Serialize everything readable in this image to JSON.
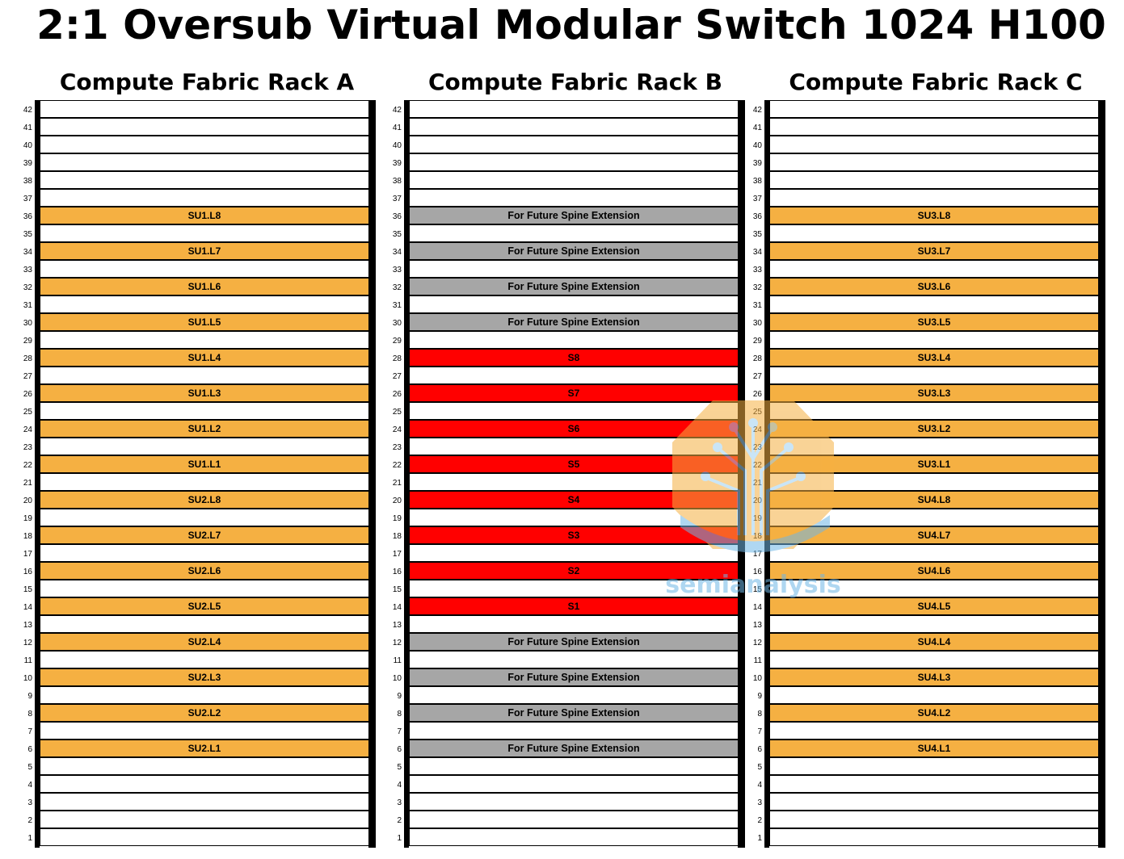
{
  "title": "2:1 Oversub Virtual Modular Switch 1024 H100",
  "colors": {
    "leaf": "#F5B042",
    "spine": "#FF0000",
    "future": "#A6A6A6",
    "empty": "#FFFFFF"
  },
  "watermark": {
    "text": "semianalysis",
    "icon": "tree-circuit-logo-icon"
  },
  "units": [
    "42",
    "41",
    "40",
    "39",
    "38",
    "37",
    "36",
    "35",
    "34",
    "33",
    "32",
    "31",
    "30",
    "29",
    "28",
    "27",
    "26",
    "25",
    "24",
    "23",
    "22",
    "21",
    "20",
    "19",
    "18",
    "17",
    "16",
    "15",
    "14",
    "13",
    "12",
    "11",
    "10",
    "9",
    "8",
    "7",
    "6",
    "5",
    "4",
    "3",
    "2",
    "1"
  ],
  "racks": [
    {
      "title": "Compute Fabric Rack A",
      "slots": [
        {
          "u": 36,
          "label": "SU1.L8",
          "kind": "leaf"
        },
        {
          "u": 34,
          "label": "SU1.L7",
          "kind": "leaf"
        },
        {
          "u": 32,
          "label": "SU1.L6",
          "kind": "leaf"
        },
        {
          "u": 30,
          "label": "SU1.L5",
          "kind": "leaf"
        },
        {
          "u": 28,
          "label": "SU1.L4",
          "kind": "leaf"
        },
        {
          "u": 26,
          "label": "SU1.L3",
          "kind": "leaf"
        },
        {
          "u": 24,
          "label": "SU1.L2",
          "kind": "leaf"
        },
        {
          "u": 22,
          "label": "SU1.L1",
          "kind": "leaf"
        },
        {
          "u": 20,
          "label": "SU2.L8",
          "kind": "leaf"
        },
        {
          "u": 18,
          "label": "SU2.L7",
          "kind": "leaf"
        },
        {
          "u": 16,
          "label": "SU2.L6",
          "kind": "leaf"
        },
        {
          "u": 14,
          "label": "SU2.L5",
          "kind": "leaf"
        },
        {
          "u": 12,
          "label": "SU2.L4",
          "kind": "leaf"
        },
        {
          "u": 10,
          "label": "SU2.L3",
          "kind": "leaf"
        },
        {
          "u": 8,
          "label": "SU2.L2",
          "kind": "leaf"
        },
        {
          "u": 6,
          "label": "SU2.L1",
          "kind": "leaf"
        }
      ]
    },
    {
      "title": "Compute Fabric Rack B",
      "slots": [
        {
          "u": 36,
          "label": "For Future Spine Extension",
          "kind": "future"
        },
        {
          "u": 34,
          "label": "For Future Spine Extension",
          "kind": "future"
        },
        {
          "u": 32,
          "label": "For Future Spine Extension",
          "kind": "future"
        },
        {
          "u": 30,
          "label": "For Future Spine Extension",
          "kind": "future"
        },
        {
          "u": 28,
          "label": "S8",
          "kind": "spine"
        },
        {
          "u": 26,
          "label": "S7",
          "kind": "spine"
        },
        {
          "u": 24,
          "label": "S6",
          "kind": "spine"
        },
        {
          "u": 22,
          "label": "S5",
          "kind": "spine"
        },
        {
          "u": 20,
          "label": "S4",
          "kind": "spine"
        },
        {
          "u": 18,
          "label": "S3",
          "kind": "spine"
        },
        {
          "u": 16,
          "label": "S2",
          "kind": "spine"
        },
        {
          "u": 14,
          "label": "S1",
          "kind": "spine"
        },
        {
          "u": 12,
          "label": "For Future Spine Extension",
          "kind": "future"
        },
        {
          "u": 10,
          "label": "For Future Spine Extension",
          "kind": "future"
        },
        {
          "u": 8,
          "label": "For Future Spine Extension",
          "kind": "future"
        },
        {
          "u": 6,
          "label": "For Future Spine Extension",
          "kind": "future"
        }
      ]
    },
    {
      "title": "Compute Fabric Rack C",
      "slots": [
        {
          "u": 36,
          "label": "SU3.L8",
          "kind": "leaf"
        },
        {
          "u": 34,
          "label": "SU3.L7",
          "kind": "leaf"
        },
        {
          "u": 32,
          "label": "SU3.L6",
          "kind": "leaf"
        },
        {
          "u": 30,
          "label": "SU3.L5",
          "kind": "leaf"
        },
        {
          "u": 28,
          "label": "SU3.L4",
          "kind": "leaf"
        },
        {
          "u": 26,
          "label": "SU3.L3",
          "kind": "leaf"
        },
        {
          "u": 24,
          "label": "SU3.L2",
          "kind": "leaf"
        },
        {
          "u": 22,
          "label": "SU3.L1",
          "kind": "leaf"
        },
        {
          "u": 20,
          "label": "SU4.L8",
          "kind": "leaf"
        },
        {
          "u": 18,
          "label": "SU4.L7",
          "kind": "leaf"
        },
        {
          "u": 16,
          "label": "SU4.L6",
          "kind": "leaf"
        },
        {
          "u": 14,
          "label": "SU4.L5",
          "kind": "leaf"
        },
        {
          "u": 12,
          "label": "SU4.L4",
          "kind": "leaf"
        },
        {
          "u": 10,
          "label": "SU4.L3",
          "kind": "leaf"
        },
        {
          "u": 8,
          "label": "SU4.L2",
          "kind": "leaf"
        },
        {
          "u": 6,
          "label": "SU4.L1",
          "kind": "leaf"
        }
      ]
    }
  ]
}
